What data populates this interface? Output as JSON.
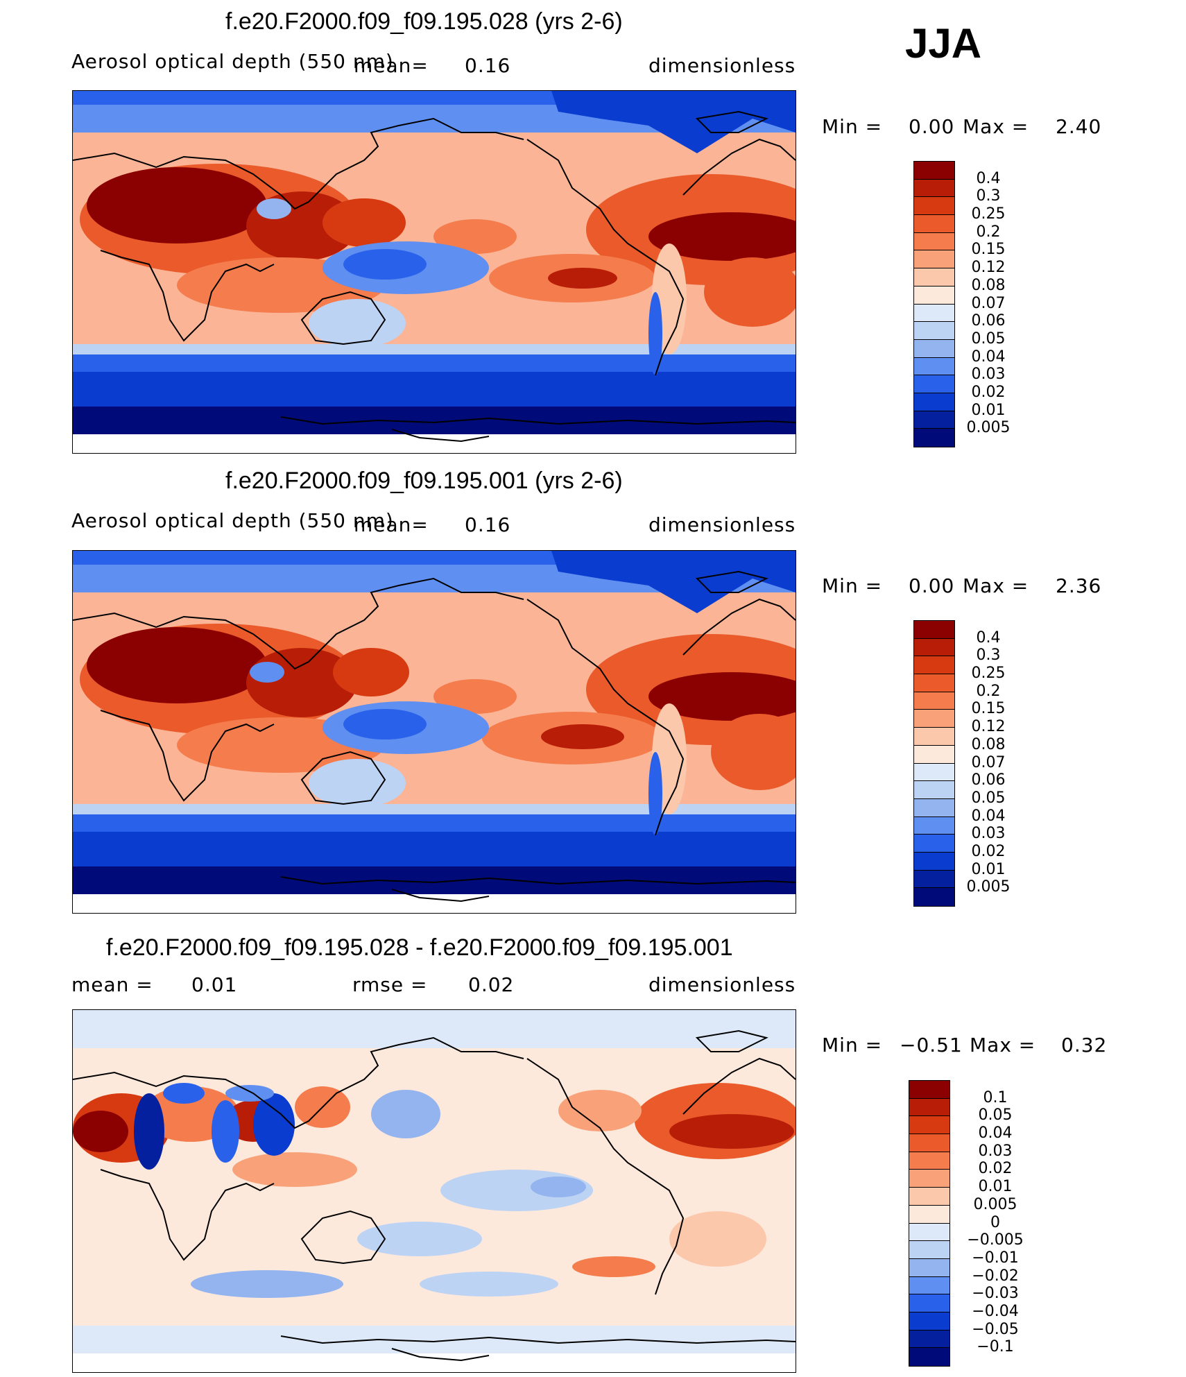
{
  "season": "JJA",
  "panels": [
    {
      "title": "f.e20.F2000.f09_f09.195.028 (yrs 2-6)",
      "variable": "Aerosol optical depth (550 nm)",
      "mean_label": "mean=",
      "mean_value": "0.16",
      "units": "dimensionless",
      "min_label": "Min =",
      "min_value": "0.00",
      "max_label": "Max =",
      "max_value": "2.40",
      "colorbar": {
        "labels": [
          "0.4",
          "0.3",
          "0.25",
          "0.2",
          "0.15",
          "0.12",
          "0.08",
          "0.07",
          "0.06",
          "0.05",
          "0.04",
          "0.03",
          "0.02",
          "0.01",
          "0.005"
        ],
        "colors": [
          "#8b0000",
          "#b81d07",
          "#d73a10",
          "#ea5a2a",
          "#f47c4d",
          "#f9a27a",
          "#fcc8ac",
          "#fde9dc",
          "#dde9f8",
          "#bdd3f3",
          "#93b4ee",
          "#5f8ff0",
          "#2a61ea",
          "#0a3cd0",
          "#04209f",
          "#000a78"
        ]
      }
    },
    {
      "title": "f.e20.F2000.f09_f09.195.001 (yrs 2-6)",
      "variable": "Aerosol optical depth (550 nm)",
      "mean_label": "mean=",
      "mean_value": "0.16",
      "units": "dimensionless",
      "min_label": "Min =",
      "min_value": "0.00",
      "max_label": "Max =",
      "max_value": "2.36",
      "colorbar": {
        "labels": [
          "0.4",
          "0.3",
          "0.25",
          "0.2",
          "0.15",
          "0.12",
          "0.08",
          "0.07",
          "0.06",
          "0.05",
          "0.04",
          "0.03",
          "0.02",
          "0.01",
          "0.005"
        ],
        "colors": [
          "#8b0000",
          "#b81d07",
          "#d73a10",
          "#ea5a2a",
          "#f47c4d",
          "#f9a27a",
          "#fcc8ac",
          "#fde9dc",
          "#dde9f8",
          "#bdd3f3",
          "#93b4ee",
          "#5f8ff0",
          "#2a61ea",
          "#0a3cd0",
          "#04209f",
          "#000a78"
        ]
      }
    },
    {
      "title": "f.e20.F2000.f09_f09.195.028 - f.e20.F2000.f09_f09.195.001",
      "mean_label": "mean =",
      "mean_value": "0.01",
      "rmse_label": "rmse =",
      "rmse_value": "0.02",
      "units": "dimensionless",
      "min_label": "Min =",
      "min_value": "−0.51",
      "max_label": "Max =",
      "max_value": "0.32",
      "colorbar": {
        "labels": [
          "0.1",
          "0.05",
          "0.04",
          "0.03",
          "0.02",
          "0.01",
          "0.005",
          "0",
          "−0.005",
          "−0.01",
          "−0.02",
          "−0.03",
          "−0.04",
          "−0.05",
          "−0.1"
        ],
        "colors": [
          "#8b0000",
          "#b81d07",
          "#d73a10",
          "#ea5a2a",
          "#f47c4d",
          "#f9a27a",
          "#fcc8ac",
          "#fde9dc",
          "#dde9f8",
          "#bdd3f3",
          "#93b4ee",
          "#5f8ff0",
          "#2a61ea",
          "#0a3cd0",
          "#04209f",
          "#000a78"
        ]
      }
    }
  ]
}
